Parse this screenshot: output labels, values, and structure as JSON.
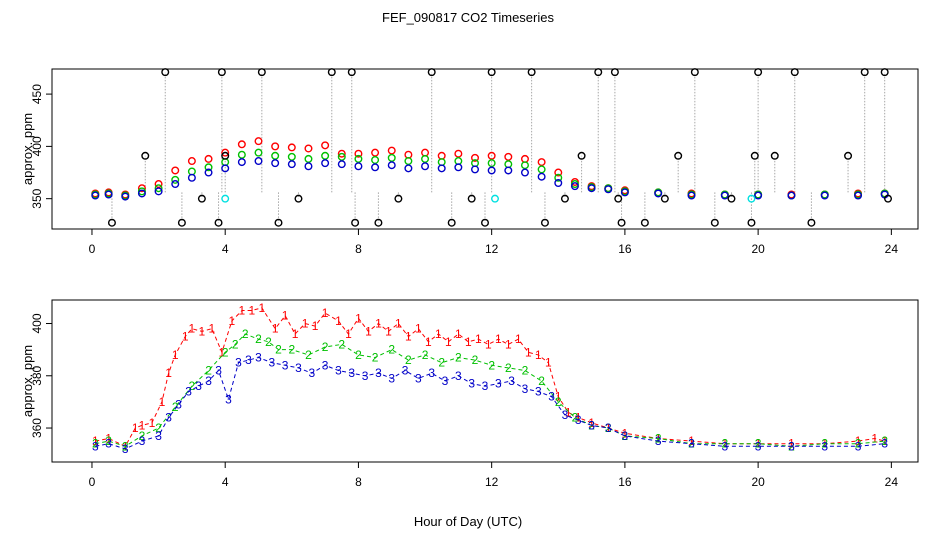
{
  "chart_data": [
    {
      "type": "scatter",
      "title": "FEF_090817  CO2 Timeseries",
      "xlabel": "",
      "ylabel": "approx. ppm",
      "xlim": [
        -1.2,
        24.8
      ],
      "ylim": [
        321,
        474
      ],
      "x_ticks": [
        "0",
        "4",
        "8",
        "12",
        "16",
        "20",
        "24"
      ],
      "y_ticks": [
        "350",
        "400",
        "450"
      ],
      "series": [
        {
          "color": "#ff0000",
          "marker": "circle",
          "x": [
            0.1,
            0.5,
            1.0,
            1.5,
            2.0,
            2.5,
            3.0,
            3.5,
            4.0,
            4.5,
            5.0,
            5.5,
            6.0,
            6.5,
            7.0,
            7.5,
            8.0,
            8.5,
            9.0,
            9.5,
            10.0,
            10.5,
            11.0,
            11.5,
            12.0,
            12.5,
            13.0,
            13.5,
            14.0,
            14.5,
            15.0,
            15.5,
            16.0,
            17.0,
            18.0,
            19.0,
            20.0,
            21.0,
            22.0,
            23.0,
            23.8
          ],
          "values": [
            355,
            356,
            354,
            360,
            364,
            377,
            386,
            388,
            394,
            402,
            405,
            400,
            399,
            398,
            401,
            393,
            393,
            394,
            396,
            392,
            394,
            391,
            393,
            389,
            391,
            390,
            388,
            385,
            375,
            366,
            362,
            360,
            358,
            356,
            355,
            354,
            354,
            354,
            354,
            355,
            355
          ]
        },
        {
          "color": "#00c000",
          "marker": "circle",
          "x": [
            0.1,
            0.5,
            1.0,
            1.5,
            2.0,
            2.5,
            3.0,
            3.5,
            4.0,
            4.5,
            5.0,
            5.5,
            6.0,
            6.5,
            7.0,
            7.5,
            8.0,
            8.5,
            9.0,
            9.5,
            10.0,
            10.5,
            11.0,
            11.5,
            12.0,
            12.5,
            13.0,
            13.5,
            14.0,
            14.5,
            15.0,
            15.5,
            16.0,
            17.0,
            18.0,
            19.0,
            20.0,
            21.0,
            22.0,
            23.0,
            23.8
          ],
          "values": [
            354,
            355,
            353,
            357,
            360,
            368,
            376,
            380,
            385,
            392,
            394,
            391,
            390,
            388,
            391,
            390,
            388,
            387,
            389,
            386,
            388,
            385,
            386,
            384,
            384,
            383,
            382,
            378,
            370,
            364,
            361,
            360,
            357,
            356,
            354,
            354,
            354,
            353,
            354,
            354,
            355
          ]
        },
        {
          "color": "#0000c8",
          "marker": "circle",
          "x": [
            0.1,
            0.5,
            1.0,
            1.5,
            2.0,
            2.5,
            3.0,
            3.5,
            4.0,
            4.5,
            5.0,
            5.5,
            6.0,
            6.5,
            7.0,
            7.5,
            8.0,
            8.5,
            9.0,
            9.5,
            10.0,
            10.5,
            11.0,
            11.5,
            12.0,
            12.5,
            13.0,
            13.5,
            14.0,
            14.5,
            15.0,
            15.5,
            16.0,
            17.0,
            18.0,
            19.0,
            20.0,
            21.0,
            22.0,
            23.0,
            23.8
          ],
          "values": [
            353,
            354,
            352,
            355,
            357,
            364,
            370,
            375,
            379,
            385,
            386,
            384,
            383,
            381,
            384,
            383,
            381,
            380,
            382,
            379,
            381,
            379,
            380,
            378,
            377,
            377,
            375,
            371,
            365,
            362,
            360,
            359,
            356,
            355,
            353,
            353,
            353,
            353,
            353,
            353,
            354
          ]
        },
        {
          "color": "#000000",
          "marker": "circle",
          "x": [
            0.6,
            1.6,
            2.2,
            2.7,
            3.3,
            3.8,
            3.9,
            4.0,
            5.1,
            5.6,
            6.2,
            7.2,
            7.8,
            7.9,
            8.6,
            9.2,
            10.2,
            10.8,
            11.4,
            11.8,
            12.0,
            13.2,
            13.6,
            14.2,
            14.7,
            15.2,
            15.7,
            15.8,
            15.9,
            16.6,
            17.2,
            17.6,
            18.1,
            18.7,
            19.2,
            19.8,
            19.9,
            20.0,
            20.5,
            21.1,
            21.6,
            22.7,
            23.2,
            23.8,
            23.9
          ],
          "values": [
            327,
            391,
            471,
            327,
            350,
            327,
            471,
            391,
            471,
            327,
            350,
            471,
            471,
            327,
            327,
            350,
            471,
            327,
            350,
            327,
            471,
            471,
            327,
            350,
            391,
            471,
            471,
            350,
            327,
            327,
            350,
            391,
            471,
            327,
            350,
            327,
            391,
            471,
            391,
            471,
            327,
            391,
            471,
            471,
            350
          ]
        },
        {
          "color": "#00e0e0",
          "marker": "circle",
          "x": [
            4.0,
            12.1,
            19.8
          ],
          "values": [
            350,
            350,
            350
          ]
        }
      ]
    },
    {
      "type": "scatter",
      "title": "",
      "xlabel": "Hour of Day (UTC)",
      "ylabel": "approx. ppm",
      "xlim": [
        -1.2,
        24.8
      ],
      "ylim": [
        347,
        409
      ],
      "x_ticks": [
        "0",
        "4",
        "8",
        "12",
        "16",
        "20",
        "24"
      ],
      "y_ticks": [
        "360",
        "380",
        "400"
      ],
      "series": [
        {
          "color": "#ff0000",
          "marker": "1",
          "x": [
            0.1,
            0.5,
            1.0,
            1.3,
            1.5,
            1.8,
            2.1,
            2.3,
            2.5,
            2.8,
            3.0,
            3.3,
            3.6,
            3.9,
            4.2,
            4.5,
            4.8,
            5.1,
            5.5,
            5.8,
            6.1,
            6.4,
            6.7,
            7.0,
            7.4,
            7.7,
            8.0,
            8.3,
            8.6,
            8.9,
            9.2,
            9.5,
            9.8,
            10.1,
            10.4,
            10.7,
            11.0,
            11.3,
            11.6,
            11.9,
            12.2,
            12.5,
            12.8,
            13.1,
            13.4,
            13.7,
            14.0,
            14.3,
            14.6,
            15.0,
            15.5,
            16.0,
            17.0,
            18.0,
            19.0,
            20.0,
            21.0,
            22.0,
            23.0,
            23.5,
            23.8
          ],
          "values": [
            355,
            356,
            353,
            360,
            361,
            362,
            370,
            381,
            388,
            395,
            398,
            397,
            398,
            389,
            401,
            405,
            405,
            406,
            398,
            403,
            396,
            400,
            399,
            404,
            401,
            396,
            402,
            397,
            400,
            397,
            400,
            395,
            398,
            393,
            396,
            393,
            396,
            393,
            394,
            392,
            394,
            392,
            394,
            389,
            388,
            385,
            372,
            366,
            364,
            362,
            360,
            358,
            356,
            355,
            354,
            354,
            354,
            354,
            355,
            356,
            355
          ]
        },
        {
          "color": "#00c000",
          "marker": "2",
          "x": [
            0.1,
            0.5,
            1.0,
            1.5,
            2.0,
            2.5,
            3.0,
            3.5,
            4.0,
            4.3,
            4.6,
            5.0,
            5.3,
            5.6,
            6.0,
            6.5,
            7.0,
            7.5,
            8.0,
            8.5,
            9.0,
            9.5,
            10.0,
            10.5,
            11.0,
            11.5,
            12.0,
            12.5,
            13.0,
            13.5,
            14.0,
            14.5,
            15.0,
            15.5,
            16.0,
            17.0,
            18.0,
            19.0,
            20.0,
            21.0,
            22.0,
            23.0,
            23.8
          ],
          "values": [
            354,
            355,
            353,
            357,
            360,
            368,
            376,
            382,
            389,
            392,
            396,
            394,
            393,
            390,
            390,
            388,
            391,
            392,
            388,
            387,
            390,
            386,
            388,
            385,
            387,
            386,
            384,
            383,
            382,
            378,
            370,
            364,
            361,
            360,
            357,
            356,
            354,
            354,
            354,
            353,
            354,
            354,
            355
          ]
        },
        {
          "color": "#0000c8",
          "marker": "3",
          "x": [
            0.1,
            0.5,
            1.0,
            1.5,
            2.0,
            2.3,
            2.6,
            2.9,
            3.2,
            3.5,
            3.8,
            4.1,
            4.4,
            4.7,
            5.0,
            5.4,
            5.8,
            6.2,
            6.6,
            7.0,
            7.4,
            7.8,
            8.2,
            8.6,
            9.0,
            9.4,
            9.8,
            10.2,
            10.6,
            11.0,
            11.4,
            11.8,
            12.2,
            12.6,
            13.0,
            13.4,
            13.8,
            14.2,
            14.6,
            15.0,
            15.5,
            16.0,
            17.0,
            18.0,
            19.0,
            20.0,
            21.0,
            22.0,
            23.0,
            23.8
          ],
          "values": [
            353,
            354,
            352,
            355,
            357,
            364,
            369,
            374,
            376,
            378,
            382,
            371,
            385,
            386,
            387,
            385,
            384,
            383,
            381,
            384,
            382,
            381,
            380,
            381,
            379,
            382,
            379,
            381,
            378,
            380,
            377,
            376,
            377,
            378,
            375,
            374,
            372,
            365,
            363,
            361,
            360,
            357,
            355,
            354,
            353,
            353,
            353,
            353,
            353,
            354
          ]
        }
      ]
    }
  ]
}
